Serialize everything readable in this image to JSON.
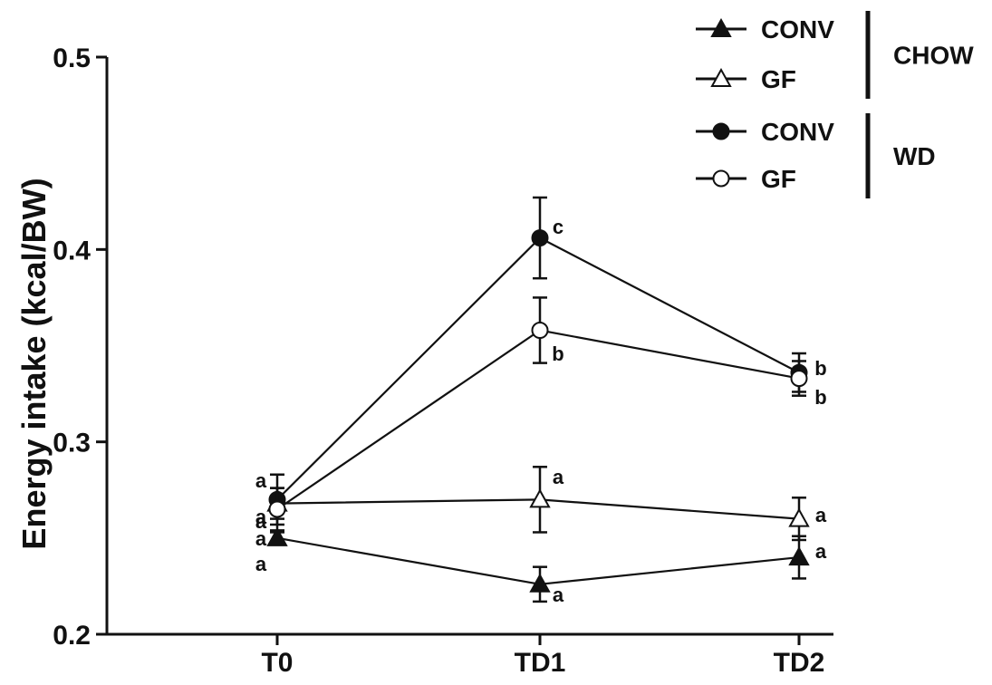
{
  "chart_data": {
    "type": "line",
    "title": "",
    "xlabel": "",
    "ylabel": "Energy intake (kcal/BW)",
    "categories": [
      "T0",
      "TD1",
      "TD2"
    ],
    "ylim": [
      0.2,
      0.5
    ],
    "yticks": [
      "0.2",
      "0.3",
      "0.4",
      "0.5"
    ],
    "grid": false,
    "legend_position": "top-right",
    "legend_groups": [
      {
        "label": "CHOW",
        "entries": [
          "CONV",
          "GF"
        ]
      },
      {
        "label": "WD",
        "entries": [
          "CONV",
          "GF"
        ]
      }
    ],
    "series": [
      {
        "name": "CONV",
        "group": "CHOW",
        "marker": "triangle-filled",
        "color": "#111111",
        "values": [
          0.25,
          0.226,
          0.24
        ],
        "errors": [
          0.003,
          0.009,
          0.011
        ],
        "labels": [
          "a",
          "a",
          "a"
        ]
      },
      {
        "name": "GF",
        "group": "CHOW",
        "marker": "triangle-open",
        "color": "#111111",
        "values": [
          0.268,
          0.27,
          0.26
        ],
        "errors": [
          0.008,
          0.017,
          0.011
        ],
        "labels": [
          "a",
          "a",
          "a"
        ]
      },
      {
        "name": "CONV",
        "group": "WD",
        "marker": "circle-filled",
        "color": "#111111",
        "values": [
          0.27,
          0.406,
          0.336
        ],
        "errors": [
          0.013,
          0.021,
          0.01
        ],
        "labels": [
          "a",
          "c",
          "b"
        ]
      },
      {
        "name": "GF",
        "group": "WD",
        "marker": "circle-open",
        "color": "#111111",
        "values": [
          0.265,
          0.358,
          0.333
        ],
        "errors": [
          0.011,
          0.017,
          0.009
        ],
        "labels": [
          "a",
          "b",
          "b"
        ]
      }
    ]
  }
}
